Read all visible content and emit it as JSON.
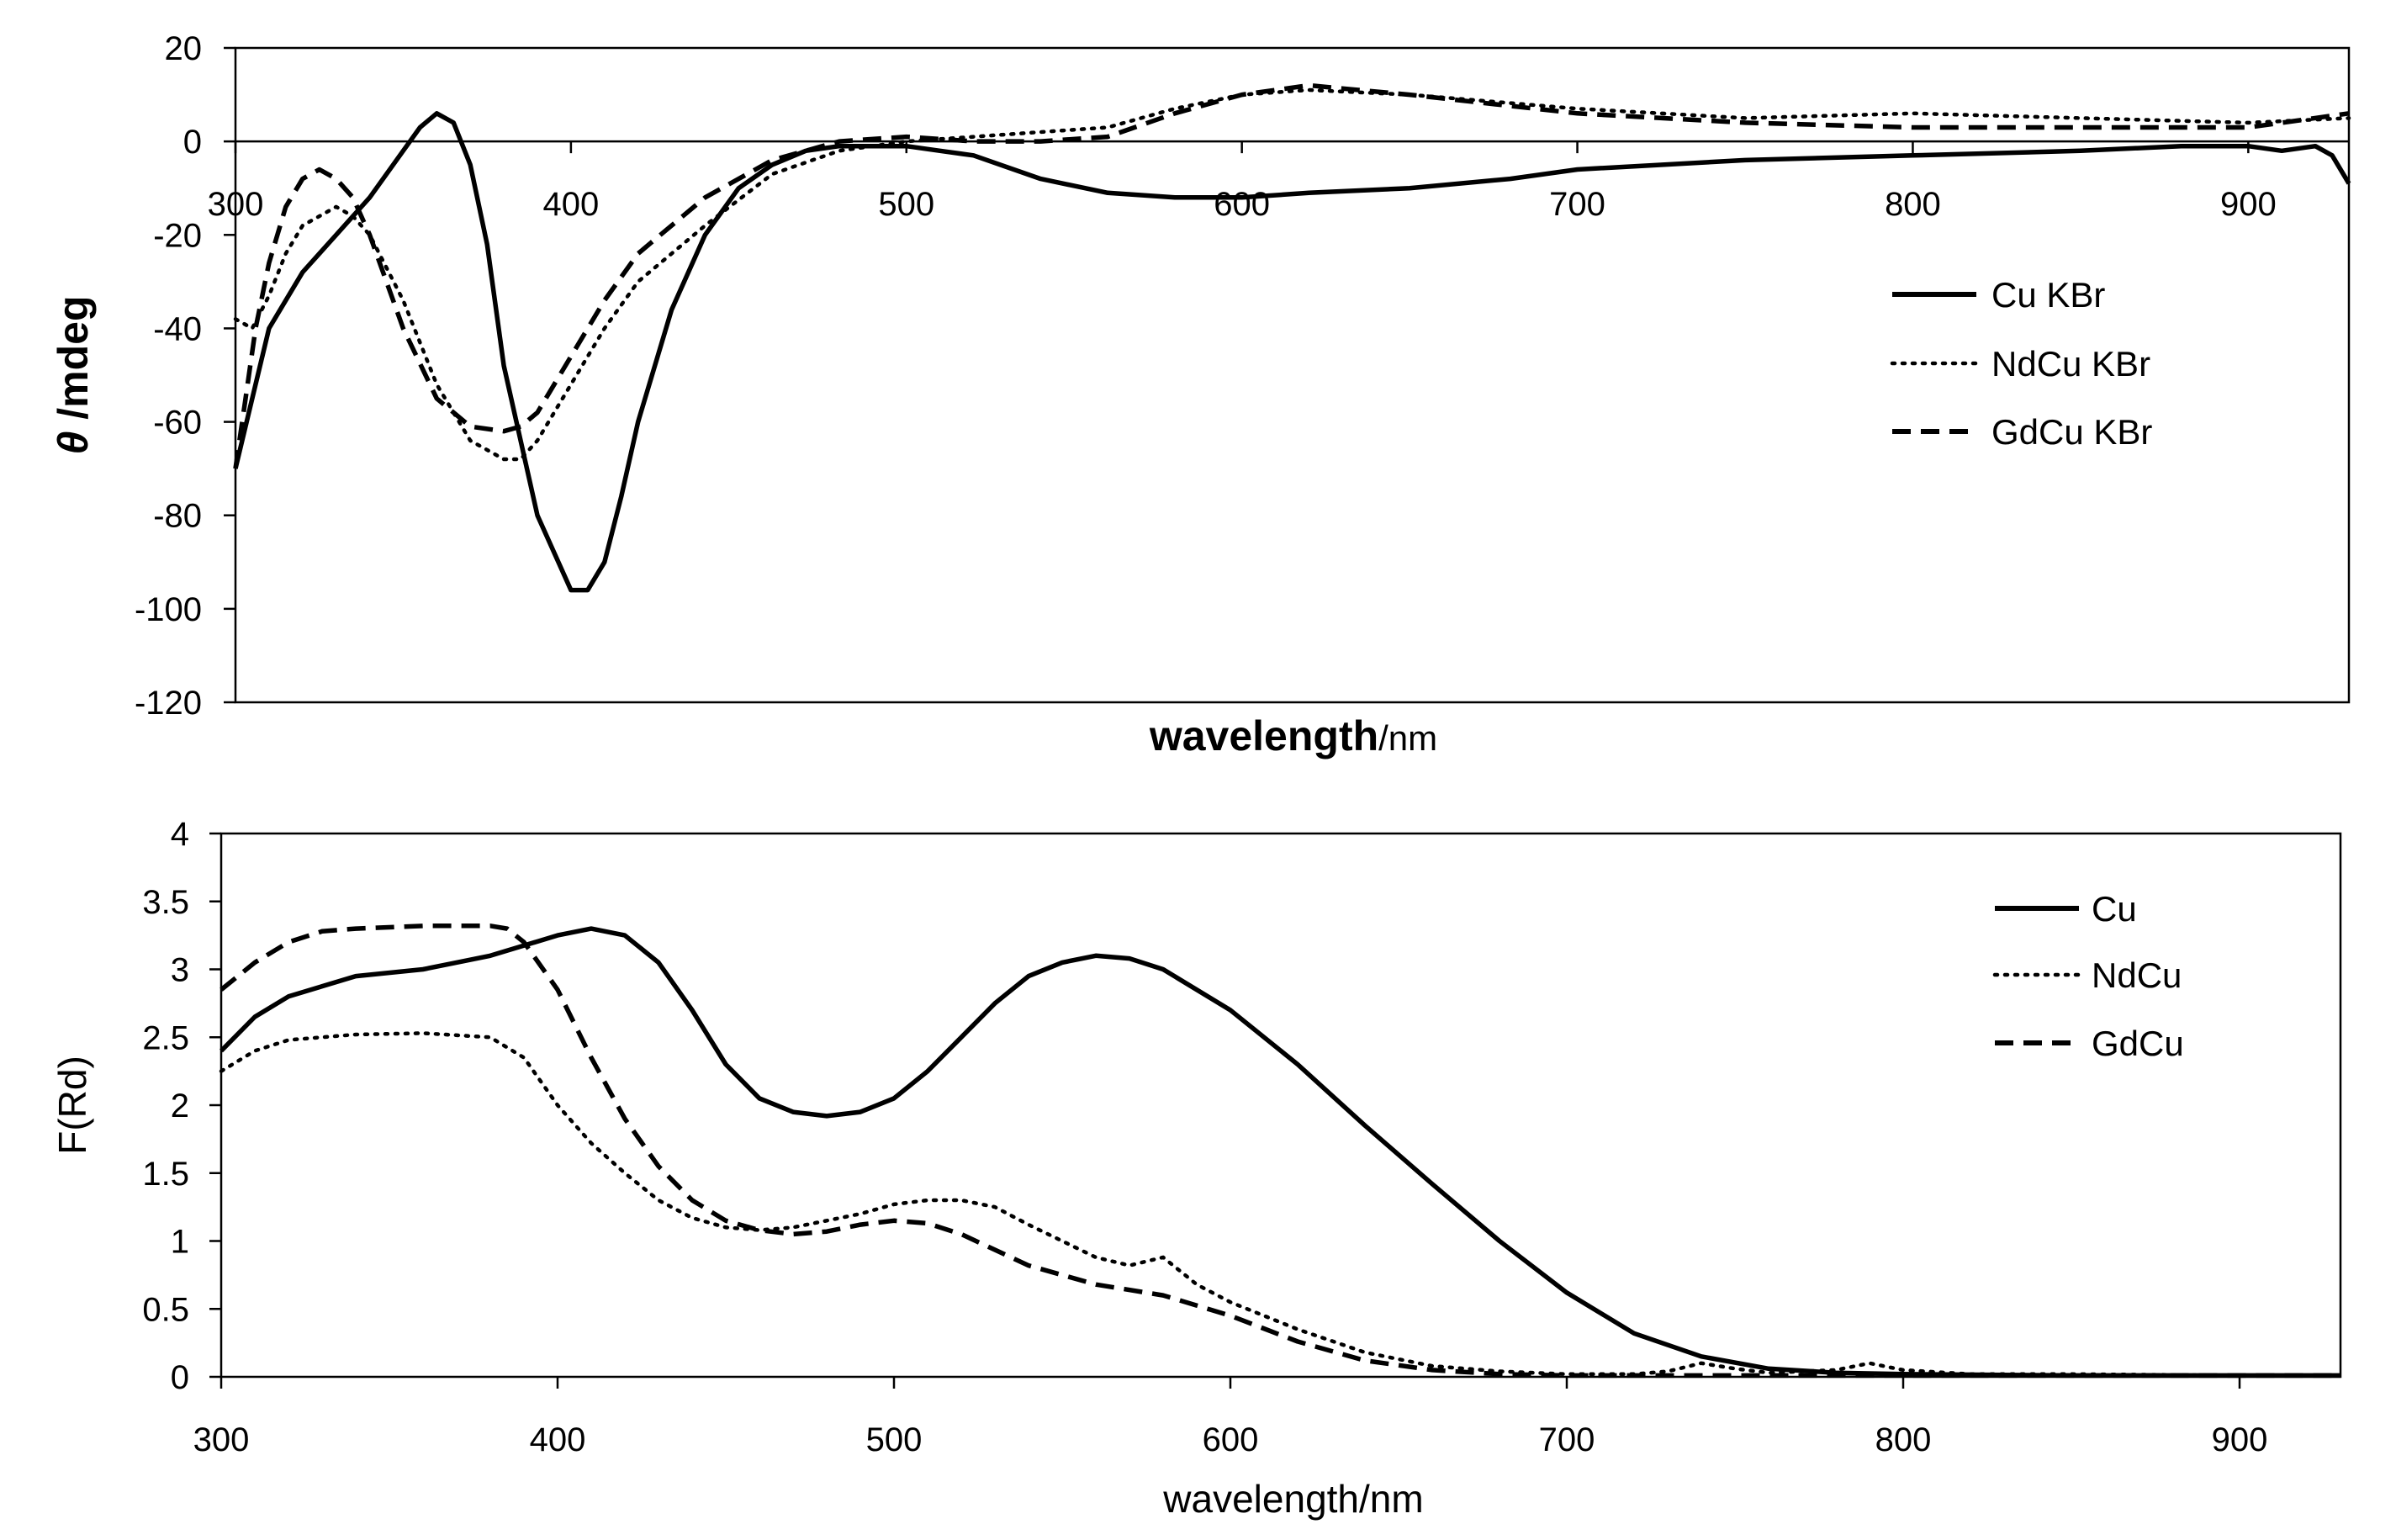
{
  "chart_data": [
    {
      "type": "line",
      "xlabel_main": "wavelength",
      "xlabel_unit": "/nm",
      "ylabel_symbol": "θ",
      "ylabel_rest": " /mdeg",
      "xlim": [
        300,
        930
      ],
      "ylim": [
        -120,
        20
      ],
      "xticks": [
        "300",
        "400",
        "500",
        "600",
        "700",
        "800",
        "900"
      ],
      "yticks": [
        "20",
        "0",
        "-20",
        "-40",
        "-60",
        "-80",
        "-100",
        "-120"
      ],
      "legend_position": "right",
      "grid": false,
      "series": [
        {
          "name": "Cu KBr",
          "style": "solid",
          "x": [
            300,
            305,
            310,
            320,
            330,
            340,
            350,
            355,
            360,
            365,
            370,
            375,
            380,
            390,
            400,
            405,
            410,
            415,
            420,
            430,
            440,
            450,
            460,
            470,
            480,
            490,
            500,
            510,
            520,
            540,
            560,
            580,
            600,
            620,
            650,
            680,
            700,
            750,
            800,
            850,
            880,
            900,
            910,
            920,
            925,
            930
          ],
          "y": [
            -70,
            -55,
            -40,
            -28,
            -20,
            -12,
            -2,
            3,
            6,
            4,
            -5,
            -22,
            -48,
            -80,
            -96,
            -96,
            -90,
            -76,
            -60,
            -36,
            -20,
            -10,
            -5,
            -2,
            -1,
            -1,
            -1,
            -2,
            -3,
            -8,
            -11,
            -12,
            -12,
            -11,
            -10,
            -8,
            -6,
            -4,
            -3,
            -2,
            -1,
            -1,
            -2,
            -1,
            -3,
            -9
          ]
        },
        {
          "name": "NdCu KBr",
          "style": "dotted",
          "x": [
            300,
            305,
            310,
            315,
            320,
            330,
            335,
            340,
            350,
            360,
            370,
            380,
            385,
            390,
            400,
            410,
            420,
            440,
            460,
            480,
            500,
            520,
            540,
            560,
            580,
            600,
            620,
            650,
            700,
            750,
            800,
            850,
            900,
            930
          ],
          "y": [
            -38,
            -40,
            -33,
            -24,
            -18,
            -14,
            -16,
            -20,
            -34,
            -52,
            -64,
            -68,
            -68,
            -64,
            -52,
            -40,
            -30,
            -18,
            -7,
            -2,
            0,
            1,
            2,
            3,
            7,
            10,
            11,
            10,
            7,
            5,
            6,
            5,
            4,
            5
          ]
        },
        {
          "name": "GdCu KBr",
          "style": "dashed",
          "x": [
            300,
            303,
            306,
            310,
            315,
            320,
            325,
            330,
            335,
            340,
            350,
            360,
            370,
            380,
            385,
            390,
            400,
            410,
            420,
            440,
            460,
            480,
            500,
            520,
            540,
            560,
            580,
            600,
            620,
            650,
            700,
            750,
            800,
            850,
            900,
            930
          ],
          "y": [
            -70,
            -55,
            -40,
            -26,
            -14,
            -8,
            -6,
            -8,
            -12,
            -20,
            -40,
            -55,
            -61,
            -62,
            -61,
            -58,
            -46,
            -34,
            -24,
            -12,
            -4,
            0,
            1,
            0,
            0,
            1,
            6,
            10,
            12,
            10,
            6,
            4,
            3,
            3,
            3,
            6
          ]
        }
      ]
    },
    {
      "type": "line",
      "xlabel": "wavelength/nm",
      "ylabel": "F(Rd)",
      "xlim": [
        300,
        930
      ],
      "ylim": [
        0,
        4
      ],
      "xticks": [
        "300",
        "400",
        "500",
        "600",
        "700",
        "800",
        "900"
      ],
      "yticks": [
        "4",
        "3.5",
        "3",
        "2.5",
        "2",
        "1.5",
        "1",
        "0.5",
        "0"
      ],
      "legend_position": "right",
      "grid": false,
      "series": [
        {
          "name": "Cu",
          "style": "solid",
          "x": [
            300,
            310,
            320,
            340,
            360,
            380,
            400,
            410,
            420,
            430,
            440,
            450,
            460,
            470,
            480,
            490,
            500,
            510,
            520,
            530,
            540,
            550,
            560,
            570,
            580,
            600,
            620,
            640,
            660,
            680,
            700,
            720,
            740,
            760,
            780,
            800,
            850,
            900,
            930
          ],
          "y": [
            2.4,
            2.65,
            2.8,
            2.95,
            3.0,
            3.1,
            3.25,
            3.3,
            3.25,
            3.05,
            2.7,
            2.3,
            2.05,
            1.95,
            1.92,
            1.95,
            2.05,
            2.25,
            2.5,
            2.75,
            2.95,
            3.05,
            3.1,
            3.08,
            3.0,
            2.7,
            2.3,
            1.85,
            1.42,
            1.0,
            0.62,
            0.32,
            0.15,
            0.06,
            0.03,
            0.02,
            0.01,
            0.01,
            0.01
          ]
        },
        {
          "name": "NdCu",
          "style": "dotted",
          "x": [
            300,
            310,
            320,
            340,
            360,
            380,
            390,
            400,
            410,
            420,
            430,
            440,
            450,
            460,
            470,
            480,
            490,
            500,
            510,
            520,
            530,
            540,
            550,
            560,
            570,
            575,
            580,
            585,
            590,
            600,
            620,
            640,
            660,
            680,
            700,
            720,
            730,
            740,
            750,
            760,
            780,
            790,
            800,
            820,
            850,
            900,
            930
          ],
          "y": [
            2.25,
            2.4,
            2.48,
            2.52,
            2.53,
            2.5,
            2.35,
            2.0,
            1.72,
            1.5,
            1.3,
            1.17,
            1.1,
            1.08,
            1.1,
            1.15,
            1.2,
            1.27,
            1.3,
            1.3,
            1.25,
            1.12,
            1.0,
            0.88,
            0.82,
            0.85,
            0.88,
            0.78,
            0.68,
            0.55,
            0.35,
            0.18,
            0.08,
            0.04,
            0.02,
            0.02,
            0.04,
            0.1,
            0.06,
            0.03,
            0.05,
            0.1,
            0.05,
            0.02,
            0.02,
            0.01,
            0.01
          ]
        },
        {
          "name": "GdCu",
          "style": "dashed",
          "x": [
            300,
            310,
            320,
            330,
            340,
            360,
            370,
            380,
            385,
            390,
            400,
            410,
            420,
            430,
            440,
            450,
            460,
            470,
            480,
            490,
            500,
            510,
            520,
            540,
            560,
            580,
            600,
            620,
            640,
            660,
            680,
            700,
            720,
            740,
            760,
            800,
            850,
            900,
            930
          ],
          "y": [
            2.85,
            3.05,
            3.2,
            3.28,
            3.3,
            3.32,
            3.32,
            3.32,
            3.3,
            3.2,
            2.85,
            2.35,
            1.9,
            1.55,
            1.3,
            1.15,
            1.08,
            1.05,
            1.07,
            1.12,
            1.15,
            1.13,
            1.05,
            0.82,
            0.68,
            0.6,
            0.45,
            0.26,
            0.12,
            0.05,
            0.02,
            0.01,
            0.01,
            0.01,
            0.01,
            0.01,
            0.01,
            0.01,
            0.01
          ]
        }
      ]
    }
  ]
}
